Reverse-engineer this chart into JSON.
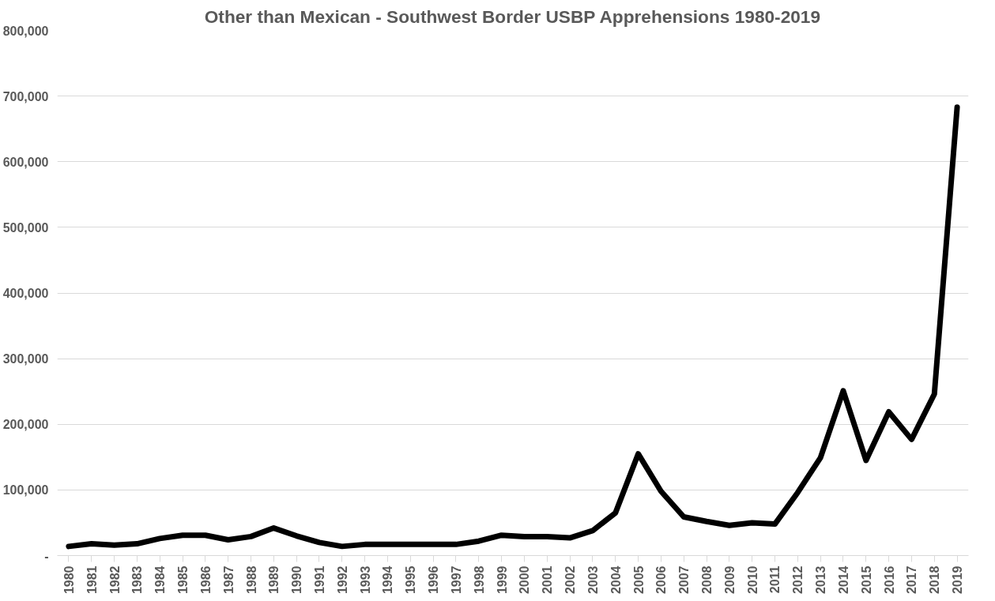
{
  "chart_data": {
    "type": "line",
    "title": "Other than Mexican - Southwest Border USBP Apprehensions 1980-2019",
    "categories": [
      "1980",
      "1981",
      "1982",
      "1983",
      "1984",
      "1985",
      "1986",
      "1987",
      "1988",
      "1989",
      "1990",
      "1991",
      "1992",
      "1993",
      "1994",
      "1995",
      "1996",
      "1997",
      "1998",
      "1999",
      "2000",
      "2001",
      "2002",
      "2003",
      "2004",
      "2005",
      "2006",
      "2007",
      "2008",
      "2009",
      "2010",
      "2011",
      "2012",
      "2013",
      "2014",
      "2015",
      "2016",
      "2017",
      "2018",
      "2019"
    ],
    "series": [
      {
        "color": "#000000",
        "values": [
          14000,
          18000,
          16000,
          18000,
          26000,
          31000,
          31000,
          24000,
          29000,
          42000,
          30000,
          20000,
          14000,
          17000,
          17000,
          17000,
          17000,
          17000,
          22000,
          31000,
          29000,
          29000,
          27000,
          38000,
          65000,
          155000,
          98000,
          59000,
          52000,
          46000,
          50000,
          48000,
          96000,
          149000,
          251000,
          145000,
          219000,
          177000,
          246000,
          683000
        ]
      }
    ],
    "ylim": [
      0,
      800000
    ],
    "yticks": [
      {
        "value": 0,
        "label": "-"
      },
      {
        "value": 100000,
        "label": "100,000"
      },
      {
        "value": 200000,
        "label": "200,000"
      },
      {
        "value": 300000,
        "label": "300,000"
      },
      {
        "value": 400000,
        "label": "400,000"
      },
      {
        "value": 500000,
        "label": "500,000"
      },
      {
        "value": 600000,
        "label": "600,000"
      },
      {
        "value": 700000,
        "label": "700,000"
      },
      {
        "value": 800000,
        "label": "800,000"
      }
    ],
    "grid": "y",
    "marker": "none",
    "line_style": "solid"
  }
}
